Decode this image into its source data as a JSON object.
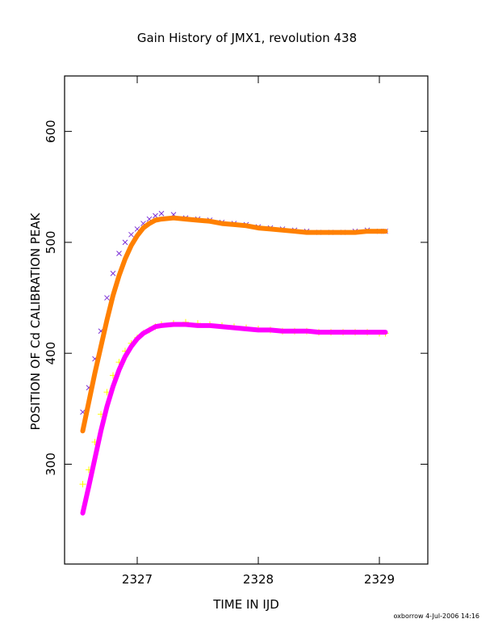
{
  "chart_data": {
    "type": "scatter",
    "title": "Gain History of JMX1, revolution 438",
    "xlabel": "TIME IN IJD",
    "ylabel": "POSITION OF Cd CALIBRATION PEAK",
    "xlim": [
      2326.4,
      2329.4
    ],
    "ylim": [
      210,
      650
    ],
    "xticks": [
      2327,
      2328,
      2329
    ],
    "yticks": [
      300,
      400,
      500,
      600
    ],
    "grid": false,
    "series": [
      {
        "marker": "x",
        "color": "#7b2fd6",
        "x": [
          2326.55,
          2326.6,
          2326.65,
          2326.7,
          2326.75,
          2326.8,
          2326.85,
          2326.9,
          2326.95,
          2327.0,
          2327.05,
          2327.1,
          2327.15,
          2327.2,
          2327.3,
          2327.4,
          2327.5,
          2327.6,
          2327.7,
          2327.8,
          2327.9,
          2328.0,
          2328.1,
          2328.2,
          2328.3,
          2328.4,
          2328.5,
          2328.6,
          2328.7,
          2328.8,
          2328.9,
          2329.0,
          2329.05
        ],
        "values": [
          347,
          369,
          395,
          420,
          450,
          472,
          490,
          500,
          507,
          512,
          517,
          521,
          524,
          526,
          525,
          522,
          521,
          520,
          518,
          517,
          516,
          514,
          513,
          512,
          511,
          510,
          509,
          509,
          509,
          510,
          511,
          510,
          510
        ]
      },
      {
        "marker": "+",
        "color": "#ffff00",
        "x": [
          2326.55,
          2326.6,
          2326.65,
          2326.7,
          2326.75,
          2326.8,
          2326.85,
          2326.9,
          2326.95,
          2327.0,
          2327.05,
          2327.1,
          2327.15,
          2327.2,
          2327.3,
          2327.4,
          2327.5,
          2327.6,
          2327.7,
          2327.8,
          2327.9,
          2328.0,
          2328.1,
          2328.2,
          2328.3,
          2328.4,
          2328.5,
          2328.6,
          2328.7,
          2328.8,
          2328.9,
          2329.0,
          2329.05
        ],
        "values": [
          282,
          295,
          320,
          345,
          365,
          380,
          392,
          402,
          409,
          414,
          418,
          421,
          424,
          426,
          427,
          428,
          427,
          426,
          425,
          424,
          423,
          422,
          421,
          420,
          420,
          420,
          419,
          419,
          419,
          419,
          419,
          418,
          418
        ]
      },
      {
        "type": "line",
        "color": "#ff8000",
        "x": [
          2326.55,
          2326.6,
          2326.65,
          2326.7,
          2326.75,
          2326.8,
          2326.85,
          2326.9,
          2326.95,
          2327.0,
          2327.05,
          2327.1,
          2327.15,
          2327.2,
          2327.3,
          2327.4,
          2327.5,
          2327.6,
          2327.7,
          2327.8,
          2327.9,
          2328.0,
          2328.1,
          2328.2,
          2328.3,
          2328.4,
          2328.5,
          2328.6,
          2328.7,
          2328.8,
          2328.9,
          2329.0,
          2329.05
        ],
        "values": [
          330,
          356,
          382,
          406,
          430,
          452,
          470,
          485,
          497,
          506,
          513,
          517,
          520,
          521,
          522,
          521,
          520,
          519,
          517,
          516,
          515,
          513,
          512,
          511,
          510,
          509,
          509,
          509,
          509,
          509,
          510,
          510,
          510
        ]
      },
      {
        "type": "line",
        "color": "#ff00ff",
        "x": [
          2326.55,
          2326.6,
          2326.65,
          2326.7,
          2326.75,
          2326.8,
          2326.85,
          2326.9,
          2326.95,
          2327.0,
          2327.05,
          2327.1,
          2327.15,
          2327.2,
          2327.3,
          2327.4,
          2327.5,
          2327.6,
          2327.7,
          2327.8,
          2327.9,
          2328.0,
          2328.1,
          2328.2,
          2328.3,
          2328.4,
          2328.5,
          2328.6,
          2328.7,
          2328.8,
          2328.9,
          2329.0,
          2329.05
        ],
        "values": [
          256,
          280,
          305,
          330,
          352,
          370,
          385,
          397,
          406,
          413,
          418,
          421,
          424,
          425,
          426,
          426,
          425,
          425,
          424,
          423,
          422,
          421,
          421,
          420,
          420,
          420,
          419,
          419,
          419,
          419,
          419,
          419,
          419
        ]
      }
    ]
  },
  "footer_text": "oxborrow   4-Jul-2006 14:16"
}
